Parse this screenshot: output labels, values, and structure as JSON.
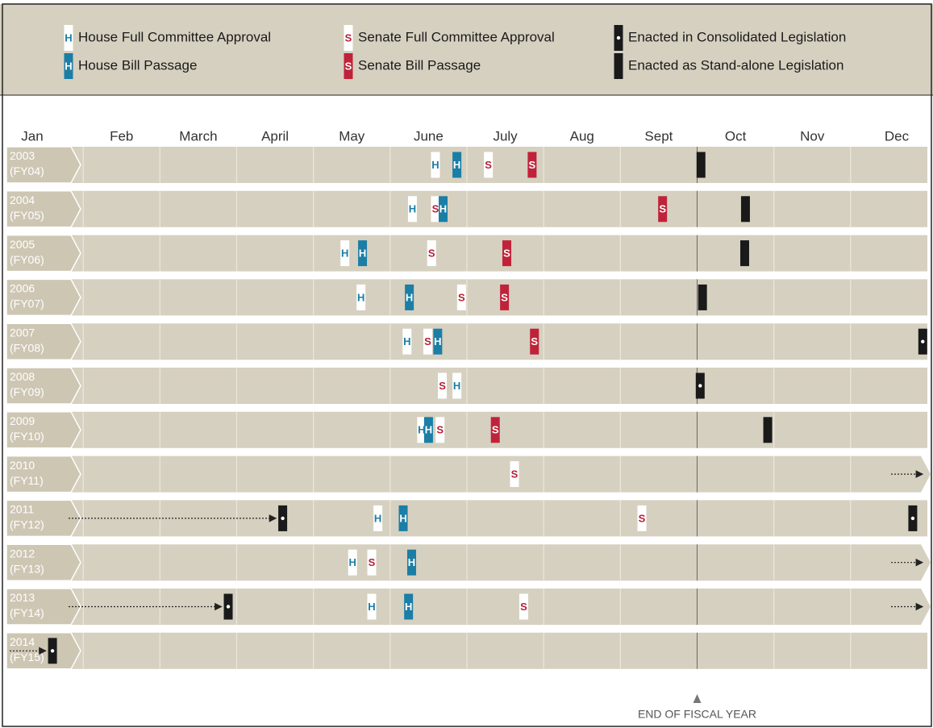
{
  "chart_data": {
    "type": "timeline",
    "xlim": [
      0,
      12
    ],
    "xticks": [
      1,
      2,
      3,
      4,
      5,
      6,
      7,
      8,
      9,
      10,
      11
    ],
    "months": [
      "Jan",
      "Feb",
      "March",
      "April",
      "May",
      "June",
      "July",
      "Aug",
      "Sept",
      "Oct",
      "Nov",
      "Dec"
    ],
    "event_types": [
      {
        "name": "House Full Committee Approval",
        "letter": "H",
        "color": "#ffffff",
        "text_color": "#1a7ea6"
      },
      {
        "name": "House Bill Passage",
        "letter": "H",
        "color": "#1a7ea6",
        "text_color": "#ffffff"
      },
      {
        "name": "Senate Full Committee Approval",
        "letter": "S",
        "color": "#ffffff",
        "text_color": "#b5213a"
      },
      {
        "name": "Senate Bill Passage",
        "letter": "S",
        "color": "#c0223a",
        "text_color": "#ffffff"
      },
      {
        "name": "Enacted in Consolidated Legislation",
        "color": "#1a1a1a",
        "dot": true
      },
      {
        "name": "Enacted as Stand-alone Legislation",
        "color": "#1a1a1a",
        "dot": false
      }
    ],
    "fiscal_year_end": 9,
    "fiscal_year_label": "END OF FISCAL YEAR",
    "rows": [
      {
        "year": "2003",
        "fy": "(FY04)",
        "carry_in": false,
        "carry_out": false,
        "events": [
          {
            "type": 0,
            "x": 5.59
          },
          {
            "type": 1,
            "x": 5.87
          },
          {
            "type": 2,
            "x": 6.28
          },
          {
            "type": 3,
            "x": 6.85
          },
          {
            "type": 5,
            "x": 9.05
          }
        ]
      },
      {
        "year": "2004",
        "fy": "(FY05)",
        "carry_in": false,
        "carry_out": false,
        "events": [
          {
            "type": 0,
            "x": 5.29
          },
          {
            "type": 2,
            "x": 5.59
          },
          {
            "type": 1,
            "x": 5.69
          },
          {
            "type": 3,
            "x": 8.55
          },
          {
            "type": 5,
            "x": 9.63
          }
        ]
      },
      {
        "year": "2005",
        "fy": "(FY06)",
        "carry_in": false,
        "carry_out": false,
        "events": [
          {
            "type": 0,
            "x": 4.41
          },
          {
            "type": 1,
            "x": 4.64
          },
          {
            "type": 2,
            "x": 5.54
          },
          {
            "type": 3,
            "x": 6.52
          },
          {
            "type": 5,
            "x": 9.62
          }
        ]
      },
      {
        "year": "2006",
        "fy": "(FY07)",
        "carry_in": false,
        "carry_out": false,
        "events": [
          {
            "type": 0,
            "x": 4.62
          },
          {
            "type": 1,
            "x": 5.25
          },
          {
            "type": 2,
            "x": 5.93
          },
          {
            "type": 3,
            "x": 6.49
          },
          {
            "type": 5,
            "x": 9.07
          }
        ]
      },
      {
        "year": "2007",
        "fy": "(FY08)",
        "carry_in": false,
        "carry_out": false,
        "events": [
          {
            "type": 0,
            "x": 5.22
          },
          {
            "type": 2,
            "x": 5.49
          },
          {
            "type": 1,
            "x": 5.62
          },
          {
            "type": 3,
            "x": 6.88
          },
          {
            "type": 4,
            "x": 11.94
          }
        ]
      },
      {
        "year": "2008",
        "fy": "(FY09)",
        "carry_in": false,
        "carry_out": false,
        "events": [
          {
            "type": 2,
            "x": 5.68
          },
          {
            "type": 0,
            "x": 5.87
          },
          {
            "type": 4,
            "x": 9.04
          }
        ]
      },
      {
        "year": "2009",
        "fy": "(FY10)",
        "carry_in": false,
        "carry_out": false,
        "events": [
          {
            "type": 0,
            "x": 5.41
          },
          {
            "type": 1,
            "x": 5.5
          },
          {
            "type": 2,
            "x": 5.65
          },
          {
            "type": 3,
            "x": 6.37
          },
          {
            "type": 5,
            "x": 9.92
          }
        ]
      },
      {
        "year": "2010",
        "fy": "(FY11)",
        "carry_in": false,
        "carry_out": true,
        "events": [
          {
            "type": 2,
            "x": 6.62
          }
        ]
      },
      {
        "year": "2011",
        "fy": "(FY12)",
        "carry_in": true,
        "carry_out": false,
        "events": [
          {
            "type": 4,
            "x": 3.6
          },
          {
            "type": 0,
            "x": 4.84
          },
          {
            "type": 1,
            "x": 5.17
          },
          {
            "type": 2,
            "x": 8.28
          },
          {
            "type": 4,
            "x": 11.81
          }
        ]
      },
      {
        "year": "2012",
        "fy": "(FY13)",
        "carry_in": false,
        "carry_out": true,
        "events": [
          {
            "type": 0,
            "x": 4.51
          },
          {
            "type": 2,
            "x": 4.76
          },
          {
            "type": 1,
            "x": 5.28
          }
        ]
      },
      {
        "year": "2013",
        "fy": "(FY14)",
        "carry_in": true,
        "carry_out": true,
        "events": [
          {
            "type": 4,
            "x": 2.89
          },
          {
            "type": 0,
            "x": 4.76
          },
          {
            "type": 1,
            "x": 5.24
          },
          {
            "type": 2,
            "x": 6.74
          }
        ]
      },
      {
        "year": "2014",
        "fy": "(FY15)",
        "carry_in": true,
        "carry_out": false,
        "events": [
          {
            "type": 4,
            "x": 0.6
          }
        ]
      }
    ]
  }
}
